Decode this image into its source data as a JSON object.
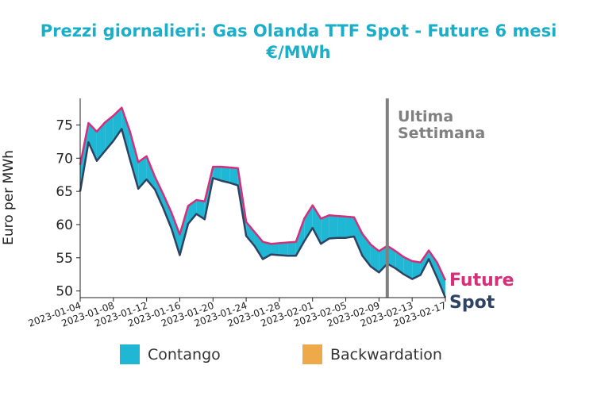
{
  "colors": {
    "title": "#1aaec9",
    "future": "#d62f7a",
    "spot": "#2e4261",
    "contango": "#1fb7d3",
    "backwardation": "#eda94a",
    "marker": "#808080",
    "axis": "#222222"
  },
  "chart_data": {
    "type": "area",
    "title_line1": "Prezzi giornalieri: Gas Olanda TTF Spot - Future 6 mesi",
    "title_line2": "€/MWh",
    "ylabel": "Euro per MWh",
    "ylim": [
      49,
      79
    ],
    "yticks": [
      50,
      55,
      60,
      65,
      70,
      75
    ],
    "xticks": [
      "2023-01-04",
      "2023-01-08",
      "2023-01-12",
      "2023-01-16",
      "2023-01-20",
      "2023-01-24",
      "2023-01-28",
      "2023-02-01",
      "2023-02-05",
      "2023-02-09",
      "2023-02-13",
      "2023-02-17"
    ],
    "xlim": [
      "2023-01-04",
      "2023-02-17"
    ],
    "annotation": {
      "line1": "Ultima",
      "line2": "Settimana",
      "date": "2023-02-10"
    },
    "legend": [
      {
        "label": "Contango",
        "color": "#1fb7d3"
      },
      {
        "label": "Backwardation",
        "color": "#eda94a"
      }
    ],
    "series": [
      {
        "name": "Future",
        "points": [
          [
            "2023-01-04",
            69.0
          ],
          [
            "2023-01-05",
            75.3
          ],
          [
            "2023-01-06",
            74.0
          ],
          [
            "2023-01-07",
            75.4
          ],
          [
            "2023-01-08",
            76.4
          ],
          [
            "2023-01-09",
            77.6
          ],
          [
            "2023-01-10",
            74.0
          ],
          [
            "2023-01-11",
            69.4
          ],
          [
            "2023-01-12",
            70.3
          ],
          [
            "2023-01-13",
            67.2
          ],
          [
            "2023-01-14",
            64.6
          ],
          [
            "2023-01-15",
            61.8
          ],
          [
            "2023-01-16",
            58.5
          ],
          [
            "2023-01-17",
            62.8
          ],
          [
            "2023-01-18",
            63.7
          ],
          [
            "2023-01-19",
            63.5
          ],
          [
            "2023-01-20",
            68.7
          ],
          [
            "2023-01-21",
            68.7
          ],
          [
            "2023-01-22",
            68.6
          ],
          [
            "2023-01-23",
            68.5
          ],
          [
            "2023-01-24",
            60.4
          ],
          [
            "2023-01-25",
            58.9
          ],
          [
            "2023-01-26",
            57.4
          ],
          [
            "2023-01-27",
            57.1
          ],
          [
            "2023-01-28",
            57.2
          ],
          [
            "2023-01-29",
            57.3
          ],
          [
            "2023-01-30",
            57.4
          ],
          [
            "2023-01-31",
            60.9
          ],
          [
            "2023-02-01",
            62.9
          ],
          [
            "2023-02-02",
            60.9
          ],
          [
            "2023-02-03",
            61.4
          ],
          [
            "2023-02-04",
            61.3
          ],
          [
            "2023-02-05",
            61.2
          ],
          [
            "2023-02-06",
            61.1
          ],
          [
            "2023-02-07",
            58.6
          ],
          [
            "2023-02-08",
            57.0
          ],
          [
            "2023-02-09",
            56.0
          ],
          [
            "2023-02-10",
            56.8
          ],
          [
            "2023-02-11",
            56.0
          ],
          [
            "2023-02-12",
            55.1
          ],
          [
            "2023-02-13",
            54.5
          ],
          [
            "2023-02-14",
            54.3
          ],
          [
            "2023-02-15",
            56.1
          ],
          [
            "2023-02-16",
            54.3
          ],
          [
            "2023-02-17",
            51.6
          ]
        ]
      },
      {
        "name": "Spot",
        "points": [
          [
            "2023-01-04",
            65.0
          ],
          [
            "2023-01-05",
            72.4
          ],
          [
            "2023-01-06",
            69.6
          ],
          [
            "2023-01-07",
            71.1
          ],
          [
            "2023-01-08",
            72.6
          ],
          [
            "2023-01-09",
            74.4
          ],
          [
            "2023-01-10",
            69.8
          ],
          [
            "2023-01-11",
            65.4
          ],
          [
            "2023-01-12",
            66.8
          ],
          [
            "2023-01-13",
            65.3
          ],
          [
            "2023-01-14",
            62.5
          ],
          [
            "2023-01-15",
            59.4
          ],
          [
            "2023-01-16",
            55.4
          ],
          [
            "2023-01-17",
            60.1
          ],
          [
            "2023-01-18",
            61.6
          ],
          [
            "2023-01-19",
            60.8
          ],
          [
            "2023-01-20",
            67.0
          ],
          [
            "2023-01-21",
            66.6
          ],
          [
            "2023-01-22",
            66.3
          ],
          [
            "2023-01-23",
            65.9
          ],
          [
            "2023-01-24",
            58.3
          ],
          [
            "2023-01-25",
            56.8
          ],
          [
            "2023-01-26",
            54.8
          ],
          [
            "2023-01-27",
            55.5
          ],
          [
            "2023-01-28",
            55.4
          ],
          [
            "2023-01-29",
            55.3
          ],
          [
            "2023-01-30",
            55.3
          ],
          [
            "2023-01-31",
            57.5
          ],
          [
            "2023-02-01",
            59.5
          ],
          [
            "2023-02-02",
            57.1
          ],
          [
            "2023-02-03",
            57.9
          ],
          [
            "2023-02-04",
            58.0
          ],
          [
            "2023-02-05",
            58.0
          ],
          [
            "2023-02-06",
            58.2
          ],
          [
            "2023-02-07",
            55.3
          ],
          [
            "2023-02-08",
            53.7
          ],
          [
            "2023-02-09",
            52.8
          ],
          [
            "2023-02-10",
            54.1
          ],
          [
            "2023-02-11",
            53.4
          ],
          [
            "2023-02-12",
            52.5
          ],
          [
            "2023-02-13",
            51.8
          ],
          [
            "2023-02-14",
            52.4
          ],
          [
            "2023-02-15",
            54.8
          ],
          [
            "2023-02-16",
            52.0
          ],
          [
            "2023-02-17",
            49.0
          ]
        ]
      }
    ]
  }
}
